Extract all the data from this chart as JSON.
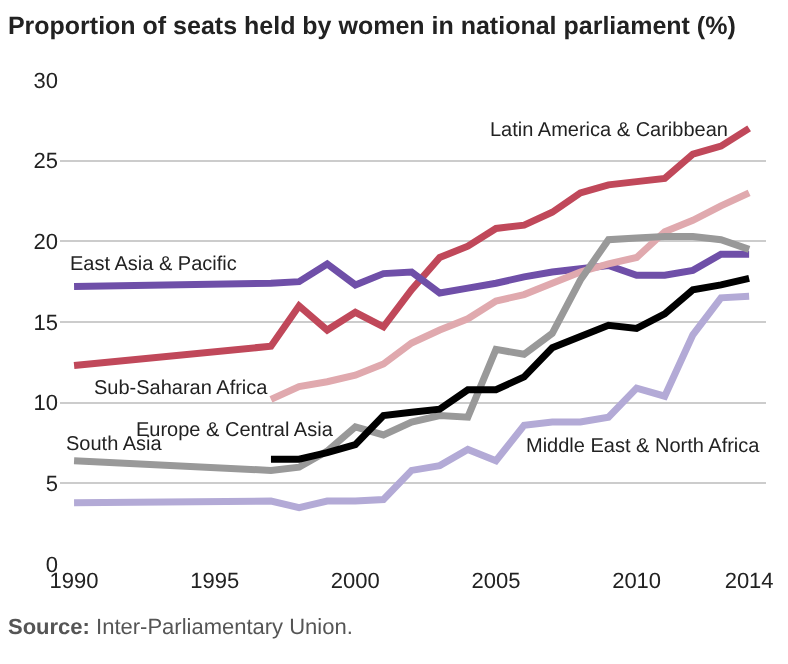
{
  "chart_data": {
    "type": "line",
    "title": "Proportion of seats held by women in national parliament (%)",
    "x": [
      1990,
      1997,
      1998,
      1999,
      2000,
      2001,
      2002,
      2003,
      2004,
      2005,
      2006,
      2007,
      2008,
      2009,
      2010,
      2011,
      2012,
      2013,
      2014
    ],
    "series": [
      {
        "name": "Latin America & Caribbean",
        "color": "#c0485a",
        "values": [
          12.3,
          13.5,
          16.0,
          14.5,
          15.6,
          14.7,
          17.0,
          19.0,
          19.7,
          20.8,
          21.0,
          21.8,
          23.0,
          23.5,
          23.7,
          23.9,
          25.4,
          25.9,
          27.0
        ]
      },
      {
        "name": "East Asia & Pacific",
        "color": "#6f4fa8",
        "values": [
          17.2,
          17.4,
          17.5,
          18.6,
          17.3,
          18.0,
          18.1,
          16.8,
          17.1,
          17.4,
          17.8,
          18.1,
          18.3,
          18.5,
          17.9,
          17.9,
          18.2,
          19.2,
          19.2
        ]
      },
      {
        "name": "Sub-Saharan Africa",
        "color": "#e0a9ae",
        "values": [
          null,
          10.2,
          11.0,
          11.3,
          11.7,
          12.4,
          13.7,
          14.5,
          15.2,
          16.3,
          16.7,
          17.4,
          18.1,
          18.6,
          19.0,
          20.6,
          21.3,
          22.2,
          23.0
        ]
      },
      {
        "name": "South Asia",
        "color": "#999999",
        "values": [
          6.4,
          5.8,
          6.0,
          7.0,
          8.5,
          8.0,
          8.8,
          9.2,
          9.1,
          13.3,
          13.0,
          14.3,
          17.6,
          20.1,
          20.2,
          20.3,
          20.3,
          20.1,
          19.5
        ]
      },
      {
        "name": "Europe & Central Asia",
        "color": "#000000",
        "values": [
          null,
          6.5,
          6.5,
          6.9,
          7.4,
          9.2,
          9.4,
          9.6,
          10.8,
          10.8,
          11.6,
          13.4,
          14.1,
          14.8,
          14.6,
          15.5,
          17.0,
          17.3,
          17.7
        ]
      },
      {
        "name": "Middle East & North Africa",
        "color": "#b3aad6",
        "values": [
          3.8,
          3.9,
          3.5,
          3.9,
          3.9,
          4.0,
          5.8,
          6.1,
          7.1,
          6.4,
          8.6,
          8.8,
          8.8,
          9.1,
          10.9,
          10.4,
          14.2,
          16.5,
          16.6
        ]
      }
    ],
    "xlim": [
      1989.5,
      2014.6
    ],
    "xticks": [
      1990,
      1995,
      2000,
      2005,
      2010,
      2014
    ],
    "ylim": [
      0,
      30
    ],
    "yticks": [
      0,
      5,
      10,
      15,
      20,
      25,
      30
    ],
    "grid": "y",
    "legend": false,
    "marker": "none",
    "line_style": "solid",
    "annotations": [
      "Source: Inter-Parliamentary Union."
    ]
  }
}
